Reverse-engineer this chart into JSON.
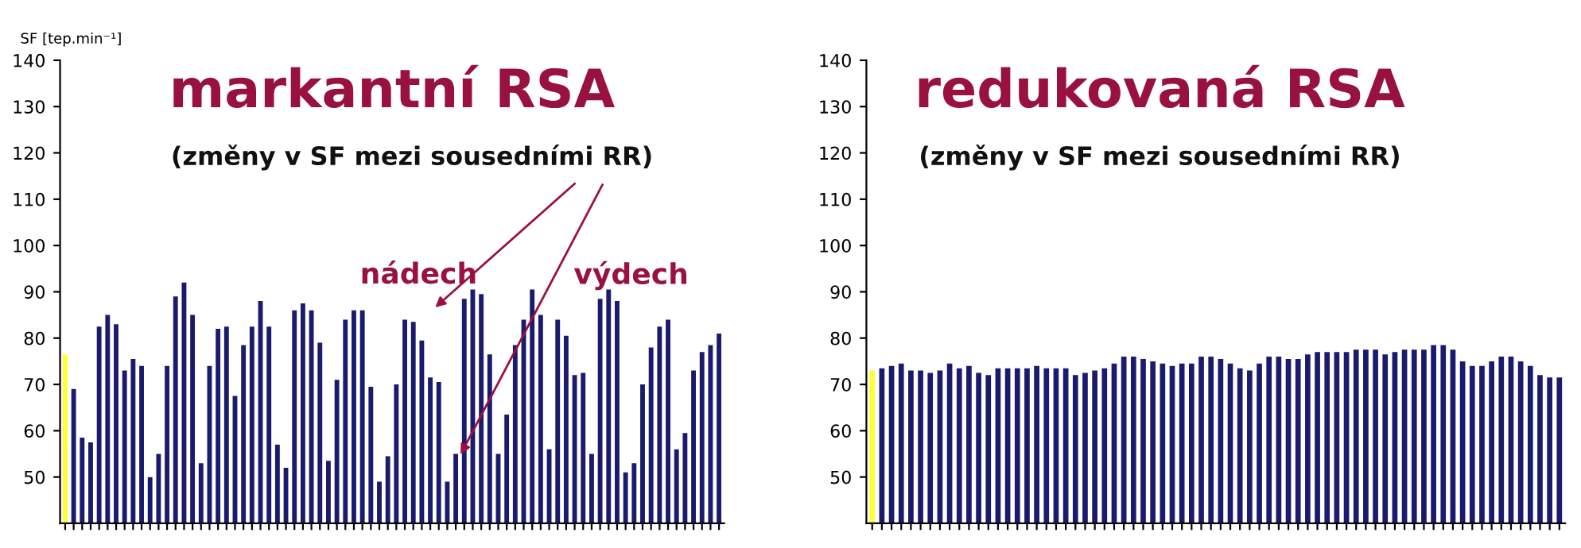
{
  "chart_data": [
    {
      "type": "bar",
      "title": "markantní RSA",
      "subtitle": "(změny v SF mezi sousedními RR)",
      "ylabel": "SF [tep.min⁻¹]",
      "annotations": [
        "nádech",
        "výdech"
      ],
      "ylim": [
        40,
        140
      ],
      "yticks": [
        50,
        60,
        70,
        80,
        90,
        100,
        110,
        120,
        130,
        140
      ],
      "tick_labels": "y",
      "grid": false,
      "legend": false,
      "categories": [
        null,
        null,
        null,
        null,
        null,
        null,
        null,
        null,
        null,
        null,
        null,
        null,
        null,
        null,
        null,
        null,
        null,
        null,
        null,
        null,
        null,
        null,
        null,
        null,
        null,
        null,
        null,
        null,
        null,
        null,
        null,
        null,
        null,
        null,
        null,
        null,
        null,
        null,
        null,
        null,
        null,
        null,
        null,
        null,
        null,
        null,
        null,
        null,
        null,
        null,
        null,
        null,
        null,
        null,
        null,
        null,
        null,
        null,
        null,
        null,
        null,
        null,
        null,
        null,
        null,
        null,
        null,
        null,
        null,
        null,
        null,
        null,
        null,
        null,
        null,
        null,
        null,
        null
      ],
      "values": [
        76.5,
        69,
        58.5,
        57.5,
        82.5,
        85,
        83,
        73,
        75.5,
        74,
        50,
        55,
        74,
        89,
        92,
        85,
        53,
        74,
        82,
        82.5,
        67.5,
        78.5,
        82.5,
        88,
        82.5,
        57,
        52,
        86,
        87.5,
        86,
        79,
        53.5,
        71,
        84,
        86,
        86,
        69.5,
        49,
        54.5,
        70,
        84,
        83.5,
        79.5,
        71.5,
        70.5,
        49,
        55,
        88.5,
        90.5,
        89.5,
        76.5,
        55,
        63.5,
        78.5,
        84,
        90.5,
        85,
        56,
        84,
        80.5,
        72,
        72.5,
        55,
        88.5,
        90.5,
        88,
        51,
        53,
        70,
        78,
        82.5,
        84,
        56,
        59.5,
        73,
        77,
        78.5,
        81
      ],
      "colors": [
        "#ffff33",
        "#1a1a6e",
        "#1a1a6e",
        "#1a1a6e",
        "#1a1a6e",
        "#1a1a6e",
        "#1a1a6e",
        "#1a1a6e",
        "#1a1a6e",
        "#1a1a6e",
        "#1a1a6e",
        "#1a1a6e",
        "#1a1a6e",
        "#1a1a6e",
        "#1a1a6e",
        "#1a1a6e",
        "#1a1a6e",
        "#1a1a6e",
        "#1a1a6e",
        "#1a1a6e",
        "#1a1a6e",
        "#1a1a6e",
        "#1a1a6e",
        "#1a1a6e",
        "#1a1a6e",
        "#1a1a6e",
        "#1a1a6e",
        "#1a1a6e",
        "#1a1a6e",
        "#1a1a6e",
        "#1a1a6e",
        "#1a1a6e",
        "#1a1a6e",
        "#1a1a6e",
        "#1a1a6e",
        "#1a1a6e",
        "#1a1a6e",
        "#1a1a6e",
        "#1a1a6e",
        "#1a1a6e",
        "#1a1a6e",
        "#1a1a6e",
        "#1a1a6e",
        "#1a1a6e",
        "#1a1a6e",
        "#1a1a6e",
        "#1a1a6e",
        "#1a1a6e",
        "#1a1a6e",
        "#1a1a6e",
        "#1a1a6e",
        "#1a1a6e",
        "#1a1a6e",
        "#1a1a6e",
        "#1a1a6e",
        "#1a1a6e",
        "#1a1a6e",
        "#1a1a6e",
        "#1a1a6e",
        "#1a1a6e",
        "#1a1a6e",
        "#1a1a6e",
        "#1a1a6e",
        "#1a1a6e",
        "#1a1a6e",
        "#1a1a6e",
        "#1a1a6e",
        "#1a1a6e",
        "#1a1a6e",
        "#1a1a6e",
        "#1a1a6e",
        "#1a1a6e",
        "#1a1a6e",
        "#1a1a6e",
        "#1a1a6e",
        "#1a1a6e",
        "#1a1a6e",
        "#1a1a6e"
      ]
    },
    {
      "type": "bar",
      "title": "redukovaná RSA",
      "subtitle": "(změny v SF mezi sousedními RR)",
      "ylim": [
        40,
        140
      ],
      "yticks": [
        50,
        60,
        70,
        80,
        90,
        100,
        110,
        120,
        130,
        140
      ],
      "tick_labels": "y",
      "grid": false,
      "legend": false,
      "categories": [
        null,
        null,
        null,
        null,
        null,
        null,
        null,
        null,
        null,
        null,
        null,
        null,
        null,
        null,
        null,
        null,
        null,
        null,
        null,
        null,
        null,
        null,
        null,
        null,
        null,
        null,
        null,
        null,
        null,
        null,
        null,
        null,
        null,
        null,
        null,
        null,
        null,
        null,
        null,
        null,
        null,
        null,
        null,
        null,
        null,
        null,
        null,
        null,
        null,
        null,
        null,
        null,
        null,
        null,
        null,
        null,
        null,
        null,
        null,
        null,
        null,
        null,
        null,
        null,
        null,
        null,
        null,
        null,
        null,
        null,
        null,
        null
      ],
      "values": [
        73,
        73.5,
        74,
        74.5,
        73,
        73,
        72.5,
        73,
        74.5,
        73.5,
        74,
        72.5,
        72,
        73.5,
        73.5,
        73.5,
        73.5,
        74,
        73.5,
        73.5,
        73.5,
        72,
        72.5,
        73,
        73.5,
        74.5,
        76,
        76,
        75.5,
        75,
        74.5,
        74,
        74.5,
        74.5,
        76,
        76,
        75.5,
        74.5,
        73.5,
        73,
        74.5,
        76,
        76,
        75.5,
        75.5,
        76.5,
        77,
        77,
        77,
        77,
        77.5,
        77.5,
        77.5,
        76.5,
        77,
        77.5,
        77.5,
        77.5,
        78.5,
        78.5,
        77.5,
        75,
        74,
        74,
        75,
        76,
        76,
        75,
        74,
        72,
        71.5,
        71.5
      ],
      "colors": [
        "#ffff33",
        "#1a1a6e",
        "#1a1a6e",
        "#1a1a6e",
        "#1a1a6e",
        "#1a1a6e",
        "#1a1a6e",
        "#1a1a6e",
        "#1a1a6e",
        "#1a1a6e",
        "#1a1a6e",
        "#1a1a6e",
        "#1a1a6e",
        "#1a1a6e",
        "#1a1a6e",
        "#1a1a6e",
        "#1a1a6e",
        "#1a1a6e",
        "#1a1a6e",
        "#1a1a6e",
        "#1a1a6e",
        "#1a1a6e",
        "#1a1a6e",
        "#1a1a6e",
        "#1a1a6e",
        "#1a1a6e",
        "#1a1a6e",
        "#1a1a6e",
        "#1a1a6e",
        "#1a1a6e",
        "#1a1a6e",
        "#1a1a6e",
        "#1a1a6e",
        "#1a1a6e",
        "#1a1a6e",
        "#1a1a6e",
        "#1a1a6e",
        "#1a1a6e",
        "#1a1a6e",
        "#1a1a6e",
        "#1a1a6e",
        "#1a1a6e",
        "#1a1a6e",
        "#1a1a6e",
        "#1a1a6e",
        "#1a1a6e",
        "#1a1a6e",
        "#1a1a6e",
        "#1a1a6e",
        "#1a1a6e",
        "#1a1a6e",
        "#1a1a6e",
        "#1a1a6e",
        "#1a1a6e",
        "#1a1a6e",
        "#1a1a6e",
        "#1a1a6e",
        "#1a1a6e",
        "#1a1a6e",
        "#1a1a6e",
        "#1a1a6e",
        "#1a1a6e",
        "#1a1a6e",
        "#1a1a6e",
        "#1a1a6e",
        "#1a1a6e",
        "#1a1a6e",
        "#1a1a6e",
        "#1a1a6e",
        "#1a1a6e",
        "#1a1a6e",
        "#1a1a6e"
      ]
    }
  ]
}
